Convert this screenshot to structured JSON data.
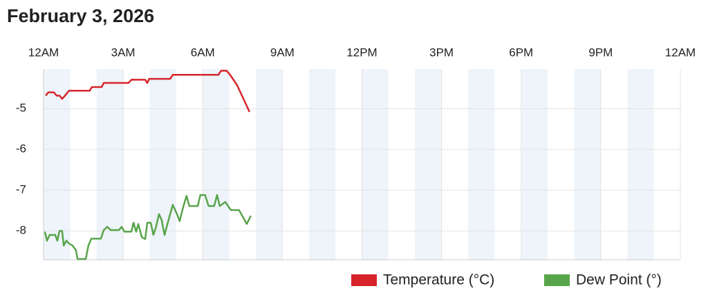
{
  "chart_data": {
    "type": "line",
    "title": "February 3, 2026",
    "xlim": [
      0,
      24
    ],
    "xticks": [
      {
        "value": 0,
        "label": "12AM"
      },
      {
        "value": 3,
        "label": "3AM"
      },
      {
        "value": 6,
        "label": "6AM"
      },
      {
        "value": 9,
        "label": "9AM"
      },
      {
        "value": 12,
        "label": "12PM"
      },
      {
        "value": 15,
        "label": "3PM"
      },
      {
        "value": 18,
        "label": "6PM"
      },
      {
        "value": 21,
        "label": "9PM"
      },
      {
        "value": 24,
        "label": "12AM"
      }
    ],
    "ylim": [
      -8.71,
      -4.03
    ],
    "yticks": [
      -5,
      -6,
      -7,
      -8
    ],
    "grid": true,
    "legend": "bottom-right",
    "series": [
      {
        "name": "Temperature (°C)",
        "color": "#d7242b",
        "x": [
          0.08,
          0.18,
          0.39,
          0.49,
          0.6,
          0.7,
          0.81,
          0.96,
          1.74,
          1.82,
          2.19,
          2.27,
          3.2,
          3.31,
          3.83,
          3.91,
          3.98,
          4.77,
          4.87,
          6.59,
          6.69,
          6.9,
          7.03,
          7.29,
          7.6,
          7.76
        ],
        "values": [
          -4.68,
          -4.6,
          -4.6,
          -4.68,
          -4.68,
          -4.76,
          -4.68,
          -4.56,
          -4.56,
          -4.47,
          -4.47,
          -4.37,
          -4.37,
          -4.29,
          -4.29,
          -4.37,
          -4.27,
          -4.27,
          -4.17,
          -4.17,
          -4.07,
          -4.07,
          -4.17,
          -4.42,
          -4.85,
          -5.08
        ]
      },
      {
        "name": "Dew Point (°)",
        "color": "#58a44a",
        "x": [
          0.05,
          0.13,
          0.23,
          0.44,
          0.52,
          0.6,
          0.7,
          0.76,
          0.86,
          0.96,
          1.09,
          1.22,
          1.28,
          1.59,
          1.69,
          1.8,
          2.16,
          2.27,
          2.4,
          2.53,
          2.84,
          2.94,
          3.05,
          3.31,
          3.39,
          3.49,
          3.57,
          3.7,
          3.83,
          3.91,
          4.04,
          4.14,
          4.24,
          4.35,
          4.45,
          4.56,
          4.66,
          4.87,
          5.03,
          5.13,
          5.26,
          5.39,
          5.49,
          5.6,
          5.81,
          5.91,
          6.09,
          6.22,
          6.43,
          6.54,
          6.64,
          6.85,
          7.06,
          7.37,
          7.66,
          7.81
        ],
        "values": [
          -8.02,
          -8.24,
          -8.1,
          -8.1,
          -8.24,
          -8.0,
          -8.0,
          -8.36,
          -8.24,
          -8.31,
          -8.36,
          -8.47,
          -8.69,
          -8.69,
          -8.36,
          -8.19,
          -8.19,
          -7.98,
          -7.9,
          -7.98,
          -7.98,
          -7.9,
          -8.02,
          -8.02,
          -7.8,
          -8.02,
          -7.83,
          -8.15,
          -8.2,
          -7.8,
          -7.8,
          -8.1,
          -7.9,
          -7.59,
          -7.73,
          -8.1,
          -7.85,
          -7.36,
          -7.59,
          -7.76,
          -7.42,
          -7.14,
          -7.39,
          -7.39,
          -7.39,
          -7.12,
          -7.12,
          -7.39,
          -7.39,
          -7.12,
          -7.39,
          -7.29,
          -7.49,
          -7.49,
          -7.83,
          -7.63
        ]
      }
    ]
  }
}
